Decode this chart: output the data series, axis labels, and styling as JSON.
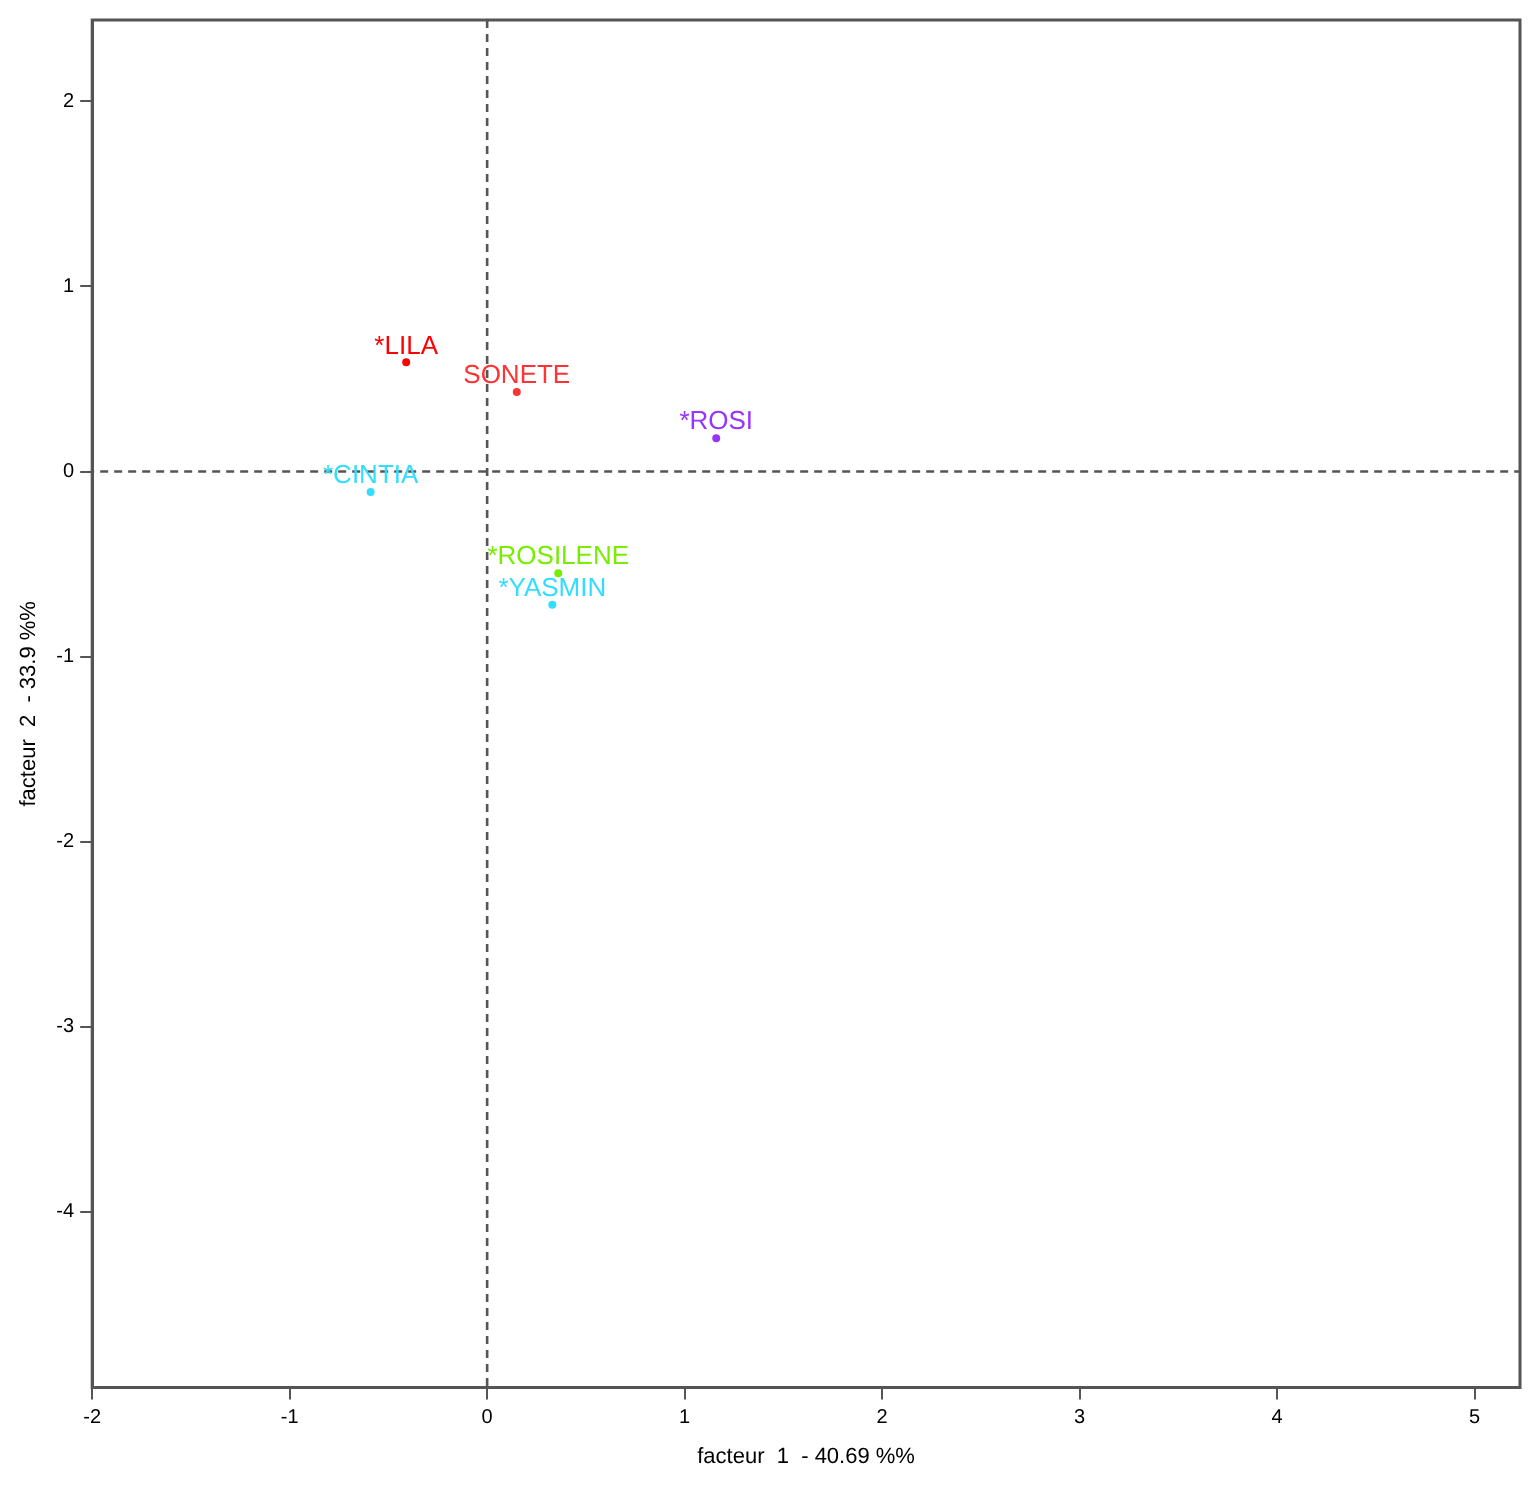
{
  "chart_data": {
    "type": "scatter",
    "xlabel": "facteur  1  - 40.69 %%",
    "ylabel": "facteur  2  - 33.9 %%",
    "xlim": [
      -2,
      5.23
    ],
    "ylim": [
      -4.95,
      2.44
    ],
    "xticks": [
      -2,
      -1,
      0,
      1,
      2,
      3,
      4,
      5
    ],
    "yticks": [
      -4,
      -3,
      -2,
      -1,
      0,
      1,
      2
    ],
    "grid": false,
    "legend": false,
    "ref_lines": [
      {
        "axis": "x",
        "value": 0,
        "label": null,
        "color": "#555555",
        "line_style": "dashed"
      },
      {
        "axis": "y",
        "value": 0,
        "label": null,
        "color": "#555555",
        "line_style": "dashed"
      }
    ],
    "series": [
      {
        "name": "*LILA",
        "color": "#ff0000",
        "x": [
          -0.41
        ],
        "values": [
          0.59
        ]
      },
      {
        "name": "SONETE",
        "color": "#ff3333",
        "x": [
          0.15
        ],
        "values": [
          0.43
        ]
      },
      {
        "name": "*ROSI",
        "color": "#9933ff",
        "x": [
          1.16
        ],
        "values": [
          0.18
        ]
      },
      {
        "name": "*CINTIA",
        "color": "#33ddff",
        "x": [
          -0.59
        ],
        "values": [
          -0.11
        ]
      },
      {
        "name": "*ROSILENE",
        "color": "#77ee00",
        "x": [
          0.36
        ],
        "values": [
          -0.55
        ]
      },
      {
        "name": "*YASMIN",
        "color": "#33ddff",
        "x": [
          0.33
        ],
        "values": [
          -0.72
        ]
      }
    ]
  }
}
